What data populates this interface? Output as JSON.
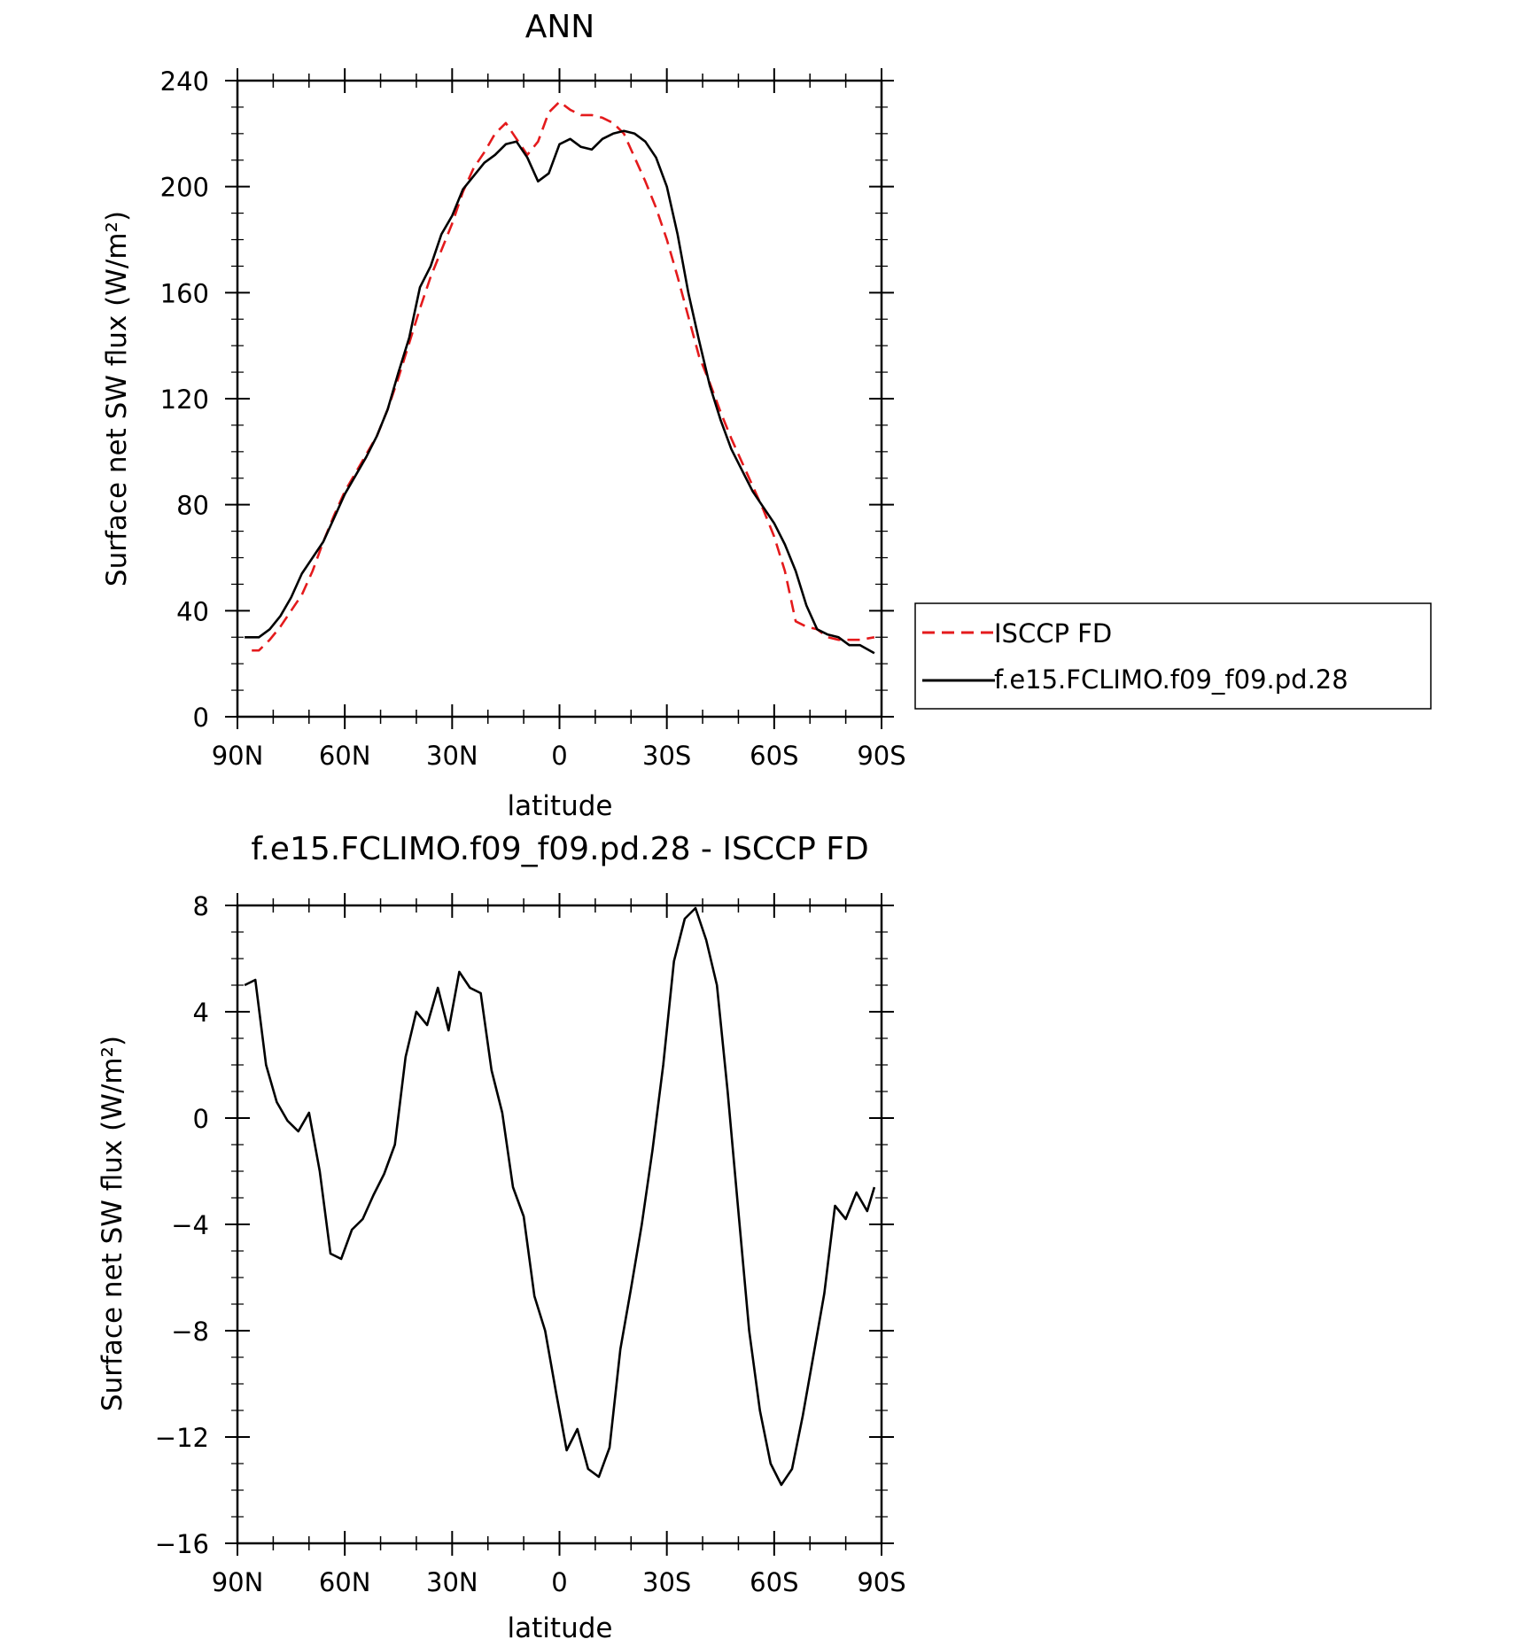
{
  "chart_data": [
    {
      "type": "line",
      "title": "ANN",
      "xlabel": "latitude",
      "ylabel": "Surface net SW flux (W/m²)",
      "x_tick_labels": [
        "90N",
        "60N",
        "30N",
        "0",
        "30S",
        "60S",
        "90S"
      ],
      "x_tick_values": [
        90,
        60,
        30,
        0,
        -30,
        -60,
        -90
      ],
      "xlim": [
        90,
        -90
      ],
      "ylim": [
        0,
        240
      ],
      "y_tick_values": [
        0,
        40,
        80,
        120,
        160,
        200,
        240
      ],
      "y_tick_labels": [
        "0",
        "40",
        "80",
        "120",
        "160",
        "200",
        "240"
      ],
      "legend_position": "right-outside",
      "series": [
        {
          "name": "ISCCP FD",
          "color": "#e41a1c",
          "dash": "dashed",
          "x": [
            86,
            84,
            81,
            78,
            75,
            72,
            69,
            66,
            63,
            60,
            57,
            54,
            51,
            48,
            45,
            42,
            39,
            36,
            33,
            30,
            27,
            24,
            21,
            18,
            15,
            12,
            9,
            6,
            3,
            0,
            -3,
            -6,
            -9,
            -12,
            -15,
            -18,
            -21,
            -24,
            -27,
            -30,
            -33,
            -36,
            -39,
            -42,
            -45,
            -48,
            -51,
            -54,
            -57,
            -60,
            -63,
            -66,
            -69,
            -72,
            -75,
            -78,
            -81,
            -84,
            -88
          ],
          "y": [
            25,
            25,
            29,
            34,
            40,
            46,
            55,
            66,
            76,
            85,
            92,
            99,
            106,
            116,
            128,
            141,
            154,
            166,
            176,
            186,
            198,
            207,
            213,
            220,
            224,
            218,
            212,
            217,
            228,
            232,
            229,
            227,
            227,
            226,
            224,
            220,
            211,
            202,
            192,
            180,
            166,
            151,
            136,
            126,
            115,
            105,
            96,
            87,
            78,
            68,
            55,
            36,
            34,
            33,
            30,
            29,
            29,
            29,
            30
          ]
        },
        {
          "name": "f.e15.FCLIMO.f09_f09.pd.28",
          "color": "#000000",
          "dash": "solid",
          "x": [
            88,
            84,
            81,
            78,
            75,
            72,
            69,
            66,
            63,
            60,
            57,
            54,
            51,
            48,
            45,
            42,
            39,
            36,
            33,
            30,
            27,
            24,
            21,
            18,
            15,
            12,
            9,
            6,
            3,
            0,
            -3,
            -6,
            -9,
            -12,
            -15,
            -18,
            -21,
            -24,
            -27,
            -30,
            -33,
            -36,
            -39,
            -42,
            -45,
            -48,
            -51,
            -54,
            -57,
            -60,
            -63,
            -66,
            -69,
            -72,
            -75,
            -78,
            -81,
            -84,
            -88
          ],
          "y": [
            30,
            30,
            33,
            38,
            45,
            54,
            60,
            66,
            75,
            84,
            91,
            98,
            106,
            116,
            130,
            143,
            162,
            170,
            182,
            189,
            199,
            204,
            209,
            212,
            216,
            217,
            211,
            202,
            205,
            216,
            218,
            215,
            214,
            218,
            220,
            221,
            220,
            217,
            211,
            200,
            182,
            160,
            142,
            125,
            112,
            101,
            93,
            85,
            79,
            73,
            65,
            55,
            42,
            33,
            31,
            30,
            27,
            27,
            24
          ]
        }
      ]
    },
    {
      "type": "line",
      "title": "f.e15.FCLIMO.f09_f09.pd.28 - ISCCP FD",
      "xlabel": "latitude",
      "ylabel": "Surface net SW flux (W/m²)",
      "x_tick_labels": [
        "90N",
        "60N",
        "30N",
        "0",
        "30S",
        "60S",
        "90S"
      ],
      "x_tick_values": [
        90,
        60,
        30,
        0,
        -30,
        -60,
        -90
      ],
      "xlim": [
        90,
        -90
      ],
      "ylim": [
        -16,
        8
      ],
      "y_tick_values": [
        -16,
        -12,
        -8,
        -4,
        0,
        4,
        8
      ],
      "y_tick_labels": [
        "−16",
        "−12",
        "−8",
        "−4",
        "0",
        "4",
        "8"
      ],
      "series": [
        {
          "color": "#000000",
          "dash": "solid",
          "x": [
            88,
            85,
            82,
            79,
            76,
            73,
            70,
            67,
            64,
            61,
            58,
            55,
            52,
            49,
            46,
            43,
            40,
            37,
            34,
            31,
            28,
            25,
            22,
            19,
            16,
            13,
            10,
            7,
            4,
            1,
            -2,
            -5,
            -8,
            -11,
            -14,
            -17,
            -20,
            -23,
            -26,
            -29,
            -32,
            -35,
            -38,
            -41,
            -44,
            -47,
            -50,
            -53,
            -56,
            -59,
            -62,
            -65,
            -68,
            -71,
            -74,
            -77,
            -80,
            -83,
            -86,
            -88
          ],
          "y": [
            5.0,
            5.2,
            2.0,
            0.6,
            -0.1,
            -0.5,
            0.2,
            -2.0,
            -5.1,
            -5.3,
            -4.2,
            -3.8,
            -2.9,
            -2.1,
            -1.0,
            2.3,
            4.0,
            3.5,
            4.9,
            3.3,
            5.5,
            4.9,
            4.7,
            1.8,
            0.2,
            -2.6,
            -3.7,
            -6.7,
            -8.0,
            -10.3,
            -12.5,
            -11.7,
            -13.2,
            -13.5,
            -12.4,
            -8.7,
            -6.4,
            -4.0,
            -1.2,
            2.0,
            5.9,
            7.5,
            7.9,
            6.7,
            5.0,
            1.0,
            -3.5,
            -8.0,
            -11.0,
            -13.0,
            -13.8,
            -13.2,
            -11.2,
            -8.9,
            -6.6,
            -3.3,
            -3.8,
            -2.8,
            -3.5,
            -2.6
          ]
        }
      ]
    }
  ],
  "legend": {
    "entries": [
      "ISCCP FD",
      "f.e15.FCLIMO.f09_f09.pd.28"
    ]
  }
}
